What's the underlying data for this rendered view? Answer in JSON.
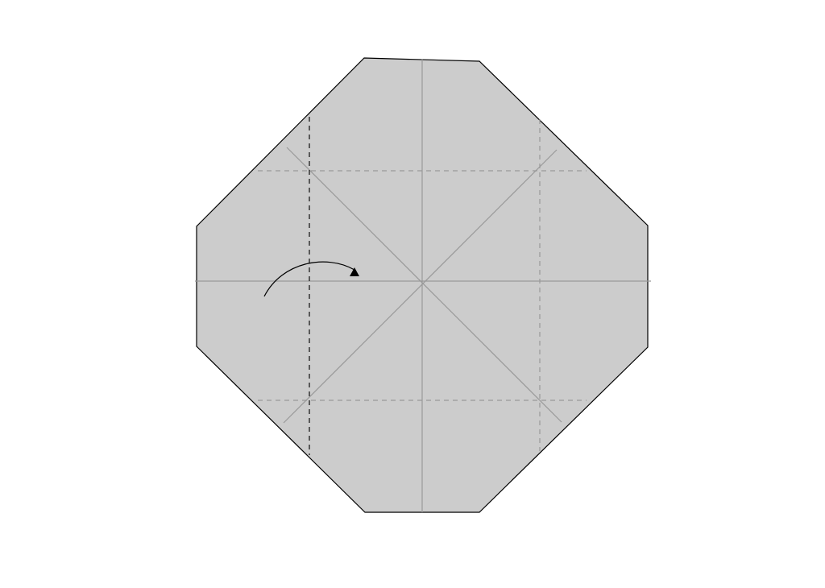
{
  "diagram": {
    "kind": "origami-fold-step",
    "paper_shape": "octagon",
    "colors": {
      "background": "#ffffff",
      "paper_fill": "#cccccc",
      "paper_edge": "#000000",
      "crease_line": "#999999",
      "existing_fold_dashed": "#999999",
      "active_fold_dashed": "#333333",
      "arrow": "#000000"
    },
    "crease_lines": [
      "vertical-center",
      "horizontal-center",
      "diagonal-a",
      "diagonal-b"
    ],
    "dashed_lines": [
      "top-horizontal",
      "bottom-horizontal",
      "right-vertical",
      "left-vertical-active"
    ],
    "instruction": {
      "action": "valley-fold",
      "direction": "left-to-right",
      "arrow_icon": "curved-arrow-icon"
    }
  }
}
